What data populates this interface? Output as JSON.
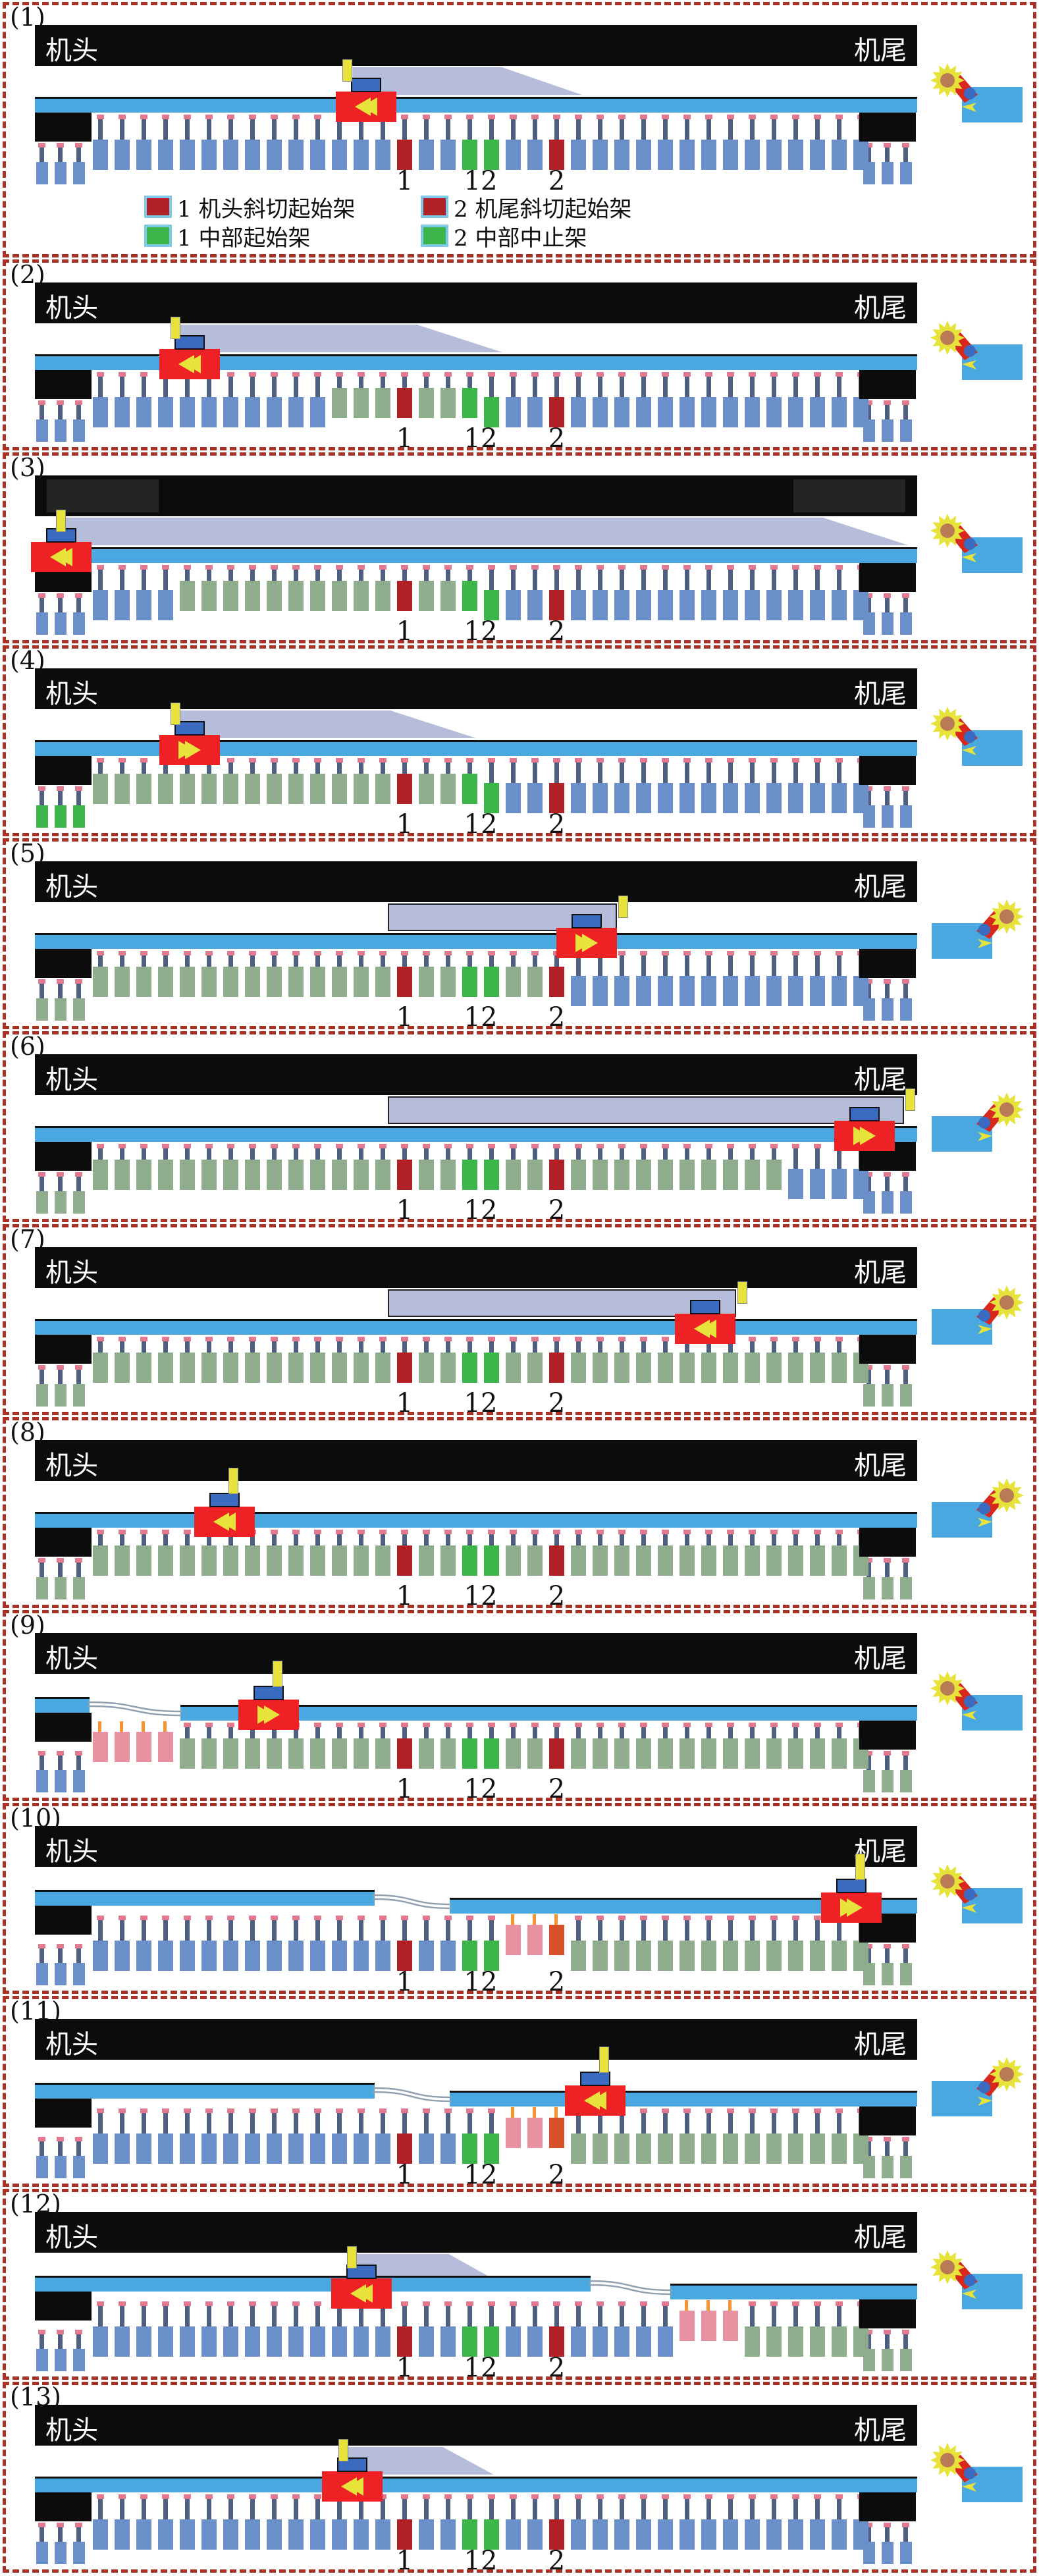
{
  "colors": {
    "panel_border": "#a93226",
    "bar": "#0c0c0c",
    "conveyor": "#49a8e0",
    "machine_body": "#b5bddb",
    "yellow": "#e7e33b",
    "cutter_red": "#ee2224",
    "machine_blue": "#3a6bc0",
    "support_blue": "#6b8fc8",
    "support_sage": "#8fad8d",
    "support_green": "#3cb54a",
    "support_red": "#b02025",
    "support_pink": "#e891a0",
    "support_orange_red": "#d8502a",
    "stem": "#4e5f82",
    "stem_orange": "#f79332",
    "cap": "#e2798f",
    "icon_brown": "#b97a56",
    "curve": "#90a0b0"
  },
  "support_labels": [
    {
      "text": "1",
      "idx": 14
    },
    {
      "text": "12",
      "idx": 17.5
    },
    {
      "text": "2",
      "idx": 21
    }
  ],
  "legend": {
    "items": [
      {
        "swatch": "#b02025",
        "label": "1 机头斜切起始架"
      },
      {
        "swatch": "#b02025",
        "label": "2 机尾斜切起始架"
      },
      {
        "swatch": "#3cb54a",
        "label": "1 中部起始架"
      },
      {
        "swatch": "#3cb54a",
        "label": "2 中部中止架"
      }
    ]
  },
  "panels": [
    {
      "id": "(1)",
      "head": "机头",
      "tail": "机尾",
      "dir": "left",
      "cutter_x": 0.375,
      "body": [
        0.36,
        0.62
      ],
      "slant": true,
      "yellow": "left",
      "segments": [
        [
          0,
          1,
          0
        ]
      ],
      "curves": [],
      "small_left": "B",
      "small_right": "B",
      "end_boxes": false,
      "icon_mirror": false,
      "supports": "B B B B B B B B B B B B B B R B B G G B B R B B B B B B B B B B B B B B"
    },
    {
      "id": "(2)",
      "head": "机头",
      "tail": "机尾",
      "dir": "left",
      "cutter_x": 0.175,
      "body": [
        0.165,
        0.53
      ],
      "slant": true,
      "yellow": "left",
      "segments": [
        [
          0,
          1,
          0
        ]
      ],
      "curves": [],
      "small_left": "B",
      "small_right": "B",
      "end_boxes": false,
      "icon_mirror": false,
      "supports": "B B B B B B B B B B B S^ S^ S^ R^ S^ S^ G^ G B B R B B B B B B B B B B B B B B"
    },
    {
      "id": "(3)",
      "head": "",
      "tail": "",
      "dir": "left",
      "cutter_x": 0.03,
      "body": [
        0.035,
        0.99
      ],
      "slant": true,
      "yellow": "left",
      "segments": [
        [
          0,
          1,
          0
        ]
      ],
      "curves": [],
      "small_left": "B",
      "small_right": "B",
      "end_boxes": true,
      "icon_mirror": false,
      "supports": "B B B B S^ S^ S^ S^ S^ S^ S^ S^ S^ S^ R^ S^ S^ G^ G B B R B B B B B B B B B B B B B B"
    },
    {
      "id": "(4)",
      "head": "机头",
      "tail": "机尾",
      "dir": "right",
      "cutter_x": 0.175,
      "body": [
        0.165,
        0.5
      ],
      "slant": true,
      "yellow": "left",
      "segments": [
        [
          0,
          1,
          0
        ]
      ],
      "curves": [],
      "small_left": "G",
      "small_right": "B",
      "end_boxes": false,
      "icon_mirror": false,
      "supports": "S^ S^ S^ S^ S^ S^ S^ S^ S^ S^ S^ S^ S^ S^ R^ S^ S^ G^ G B B R B B B B B B B B B B B B B B"
    },
    {
      "id": "(5)",
      "head": "机头",
      "tail": "机尾",
      "dir": "right",
      "cutter_x": 0.625,
      "body": [
        0.4,
        0.66
      ],
      "slant": false,
      "yellow": "right",
      "segments": [
        [
          0,
          1,
          0
        ]
      ],
      "curves": [],
      "small_left": "S",
      "small_right": "B",
      "end_boxes": false,
      "icon_mirror": true,
      "supports": "S^ S^ S^ S^ S^ S^ S^ S^ S^ S^ S^ S^ S^ S^ R^ S^ S^ G^ G^ S^ S^ R^ B B B B B B B B B B B B B B"
    },
    {
      "id": "(6)",
      "head": "机头",
      "tail": "机尾",
      "dir": "right",
      "cutter_x": 0.94,
      "body": [
        0.4,
        0.985
      ],
      "slant": false,
      "yellow": "right",
      "segments": [
        [
          0,
          1,
          0
        ]
      ],
      "curves": [],
      "small_left": "S",
      "small_right": "B",
      "end_boxes": false,
      "icon_mirror": true,
      "supports": "S^ S^ S^ S^ S^ S^ S^ S^ S^ S^ S^ S^ S^ S^ R^ S^ S^ G^ G^ S^ S^ R^ S^ S^ S^ S^ S^ S^ S^ S^ S^ S^ B B B B"
    },
    {
      "id": "(7)",
      "head": "机头",
      "tail": "机尾",
      "dir": "left",
      "cutter_x": 0.76,
      "body": [
        0.4,
        0.795
      ],
      "slant": false,
      "yellow": "right",
      "segments": [
        [
          0,
          1,
          0
        ]
      ],
      "curves": [],
      "small_left": "S",
      "small_right": "S",
      "end_boxes": false,
      "icon_mirror": true,
      "supports": "S^ S^ S^ S^ S^ S^ S^ S^ S^ S^ S^ S^ S^ S^ R^ S^ S^ G^ G^ S^ S^ R^ S^ S^ S^ S^ S^ S^ S^ S^ S^ S^ S^ S^ S^ S^"
    },
    {
      "id": "(8)",
      "head": "机头",
      "tail": "机尾",
      "dir": "left",
      "cutter_x": 0.215,
      "body": null,
      "slant": false,
      "yellow": "center",
      "segments": [
        [
          0,
          1,
          0
        ]
      ],
      "curves": [],
      "small_left": "S",
      "small_right": "S",
      "end_boxes": false,
      "icon_mirror": true,
      "supports": "S^ S^ S^ S^ S^ S^ S^ S^ S^ S^ S^ S^ S^ S^ R^ S^ S^ G^ G^ S^ S^ R^ S^ S^ S^ S^ S^ S^ S^ S^ S^ S^ S^ S^ S^ S^"
    },
    {
      "id": "(9)",
      "head": "机头",
      "tail": "机尾",
      "dir": "right",
      "cutter_x": 0.265,
      "body": null,
      "slant": false,
      "yellow": "center",
      "segments": [
        [
          0,
          0.062,
          -12
        ],
        [
          0.165,
          1,
          0
        ]
      ],
      "curves": [
        [
          0.062,
          0.165,
          -12
        ]
      ],
      "small_left": "B",
      "small_right": "S",
      "end_boxes": false,
      "icon_mirror": false,
      "supports": "P! P! P! P! S^ S^ S^ S^ S^ S^ S^ S^ S^ S^ R^ S^ S^ G^ G^ S^ S^ R^ S^ S^ S^ S^ S^ S^ S^ S^ S^ S^ S^ S^ S^ S^"
    },
    {
      "id": "(10)",
      "head": "机头",
      "tail": "机尾",
      "dir": "right",
      "cutter_x": 0.925,
      "body": null,
      "slant": false,
      "yellow": "center",
      "segments": [
        [
          0,
          0.385,
          -12
        ],
        [
          0.47,
          1,
          0
        ]
      ],
      "curves": [
        [
          0.385,
          0.47,
          -12
        ]
      ],
      "small_left": "B",
      "small_right": "S",
      "end_boxes": false,
      "icon_mirror": false,
      "supports": "B B B B B B B B B B B B B B R B B G G P! P! O! S S S S S S S S S S S S S S"
    },
    {
      "id": "(11)",
      "head": "机头",
      "tail": "机尾",
      "dir": "left",
      "cutter_x": 0.635,
      "body": null,
      "slant": false,
      "yellow": "center",
      "segments": [
        [
          0,
          0.385,
          -12
        ],
        [
          0.47,
          1,
          0
        ]
      ],
      "curves": [
        [
          0.385,
          0.47,
          -12
        ]
      ],
      "small_left": "B",
      "small_right": "S",
      "end_boxes": false,
      "icon_mirror": true,
      "supports": "B B B B B B B B B B B B B B R B B G G P! P! O! S S S S S S S S S S S S S S"
    },
    {
      "id": "(12)",
      "head": "机头",
      "tail": "机尾",
      "dir": "left",
      "cutter_x": 0.37,
      "body": [
        0.365,
        0.525
      ],
      "slant": true,
      "yellow": "left",
      "segments": [
        [
          0,
          0.63,
          -12
        ],
        [
          0.72,
          1,
          0
        ]
      ],
      "curves": [
        [
          0.63,
          0.72,
          -12
        ]
      ],
      "small_left": "B",
      "small_right": "S",
      "end_boxes": false,
      "icon_mirror": false,
      "supports": "B B B B B B B B B B B B B B R B B G G B B R B B B B B P! P! P! S S S S S S"
    },
    {
      "id": "(13)",
      "head": "机头",
      "tail": "机尾",
      "dir": "left",
      "cutter_x": 0.36,
      "body": [
        0.355,
        0.52
      ],
      "slant": true,
      "yellow": "left",
      "segments": [
        [
          0,
          1,
          0
        ]
      ],
      "curves": [],
      "small_left": "B",
      "small_right": "B",
      "end_boxes": false,
      "icon_mirror": false,
      "supports": "B B B B B B B B B B B B B B R B B G G B B R B B B B B B B B B B B B B B"
    }
  ]
}
